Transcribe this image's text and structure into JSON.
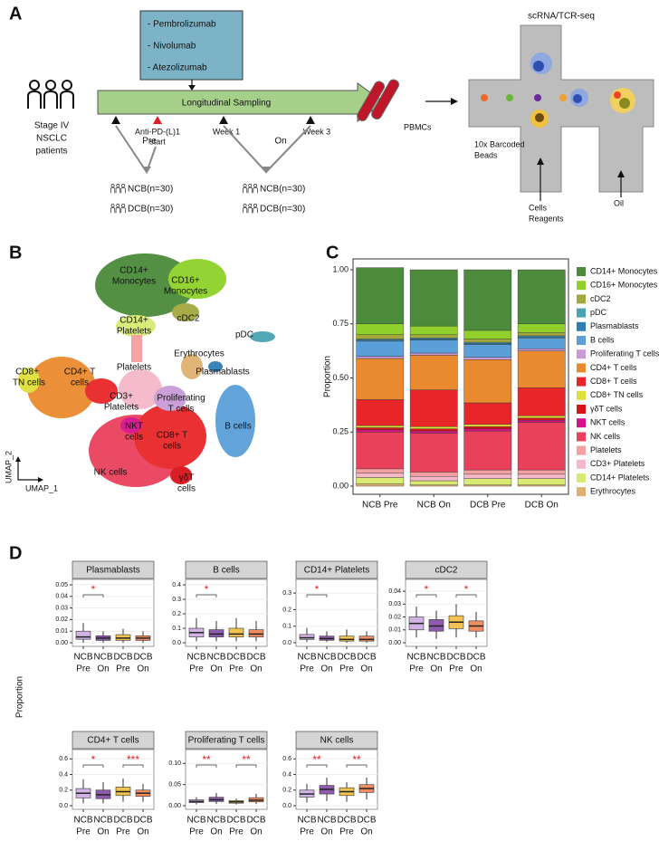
{
  "panel_a": {
    "label": "A",
    "drugs": [
      "- Pembrolizumab",
      "- Nivolumab",
      "- Atezolizumab"
    ],
    "patients": [
      "Stage IV",
      "NSCLC",
      "patients"
    ],
    "sampling": "Longitudinal Sampling",
    "timepoints": [
      [
        "Anti-PD-(L)1",
        "start"
      ],
      [
        "Week 1"
      ],
      [
        "Week 3"
      ]
    ],
    "phases": [
      "Pre",
      "On"
    ],
    "groups": [
      "NCB(n=30)",
      "DCB(n=30)",
      "NCB(n=30)",
      "DCB(n=30)"
    ],
    "pbmcs": "PBMCs",
    "seq_title": "scRNA/TCR-seq",
    "beads": [
      "10x Barcoded",
      "Beads"
    ],
    "cells": [
      "Cells",
      "Reagents"
    ],
    "oil": "Oil"
  },
  "panel_b": {
    "label": "B",
    "clusters": [
      [
        "CD14+",
        "Monocytes"
      ],
      [
        "CD16+",
        "Monocytes"
      ],
      [
        "CD14+",
        "Platelets"
      ],
      [
        "cDC2"
      ],
      [
        "pDC"
      ],
      [
        "Erythrocytes"
      ],
      [
        "Plasmablasts"
      ],
      [
        "CD8+",
        "TN cells"
      ],
      [
        "CD4+ T",
        "cells"
      ],
      [
        "Platelets"
      ],
      [
        "CD3+",
        "Platelets"
      ],
      [
        "Proliferating",
        "T cells"
      ],
      [
        "B cells"
      ],
      [
        "NKT",
        "cells"
      ],
      [
        "CD8+ T",
        "cells"
      ],
      [
        "NK cells"
      ],
      [
        "γδT",
        "cells"
      ]
    ],
    "axes": [
      "UMAP_2",
      "UMAP_1"
    ]
  },
  "panel_c_label": "C",
  "panel_d_label": "D",
  "panel_d_ylabel": "Proportion",
  "chart_data": [
    {
      "type": "stacked_bar",
      "ylabel": "Proportion",
      "categories": [
        "NCB Pre",
        "NCB On",
        "DCB Pre",
        "DCB On"
      ],
      "ylim": [
        0,
        1
      ],
      "yticks": [
        {
          "value": 0,
          "label": "0.00"
        },
        0.25,
        {
          "value": 0.5,
          "label": "0.50"
        },
        0.75,
        {
          "value": 1,
          "label": "1.00"
        }
      ],
      "series": [
        {
          "name": "CD14+ Monocytes",
          "color": "#4b8b3b",
          "values": [
            0.26,
            0.26,
            0.28,
            0.25
          ]
        },
        {
          "name": "CD16+ Monocytes",
          "color": "#8fd12a",
          "values": [
            0.05,
            0.04,
            0.04,
            0.04
          ]
        },
        {
          "name": "cDC2",
          "color": "#a3a83e",
          "values": [
            0.02,
            0.015,
            0.015,
            0.015
          ]
        },
        {
          "name": "pDC",
          "color": "#4aa3b3",
          "values": [
            0.005,
            0.005,
            0.005,
            0.005
          ]
        },
        {
          "name": "Plasmablasts",
          "color": "#2f7fb5",
          "values": [
            0.005,
            0.005,
            0.005,
            0.005
          ]
        },
        {
          "name": "B cells",
          "color": "#5a9fd8",
          "values": [
            0.07,
            0.06,
            0.06,
            0.05
          ]
        },
        {
          "name": "Proliferating T cells",
          "color": "#c99ad6",
          "values": [
            0.01,
            0.01,
            0.01,
            0.01
          ]
        },
        {
          "name": "CD4+ T cells",
          "color": "#ea8a2e",
          "values": [
            0.19,
            0.16,
            0.2,
            0.17
          ]
        },
        {
          "name": "CD8+ T cells",
          "color": "#e8262a",
          "values": [
            0.12,
            0.17,
            0.1,
            0.13
          ]
        },
        {
          "name": "CD8+ TN cells",
          "color": "#e0e03a",
          "values": [
            0.01,
            0.01,
            0.01,
            0.01
          ]
        },
        {
          "name": "γδT cells",
          "color": "#d7141a",
          "values": [
            0.01,
            0.01,
            0.01,
            0.01
          ]
        },
        {
          "name": "NKT cells",
          "color": "#d6128a",
          "values": [
            0.01,
            0.01,
            0.01,
            0.01
          ]
        },
        {
          "name": "NK cells",
          "color": "#e9415c",
          "values": [
            0.17,
            0.18,
            0.18,
            0.22
          ]
        },
        {
          "name": "Platelets",
          "color": "#f2a0a0",
          "values": [
            0.02,
            0.02,
            0.02,
            0.02
          ]
        },
        {
          "name": "CD3+ Platelets",
          "color": "#f5b8c8",
          "values": [
            0.02,
            0.02,
            0.02,
            0.02
          ]
        },
        {
          "name": "CD14+ Platelets",
          "color": "#d8ea72",
          "values": [
            0.03,
            0.02,
            0.03,
            0.03
          ]
        },
        {
          "name": "Erythrocytes",
          "color": "#e0b070",
          "values": [
            0.01,
            0.005,
            0.005,
            0.005
          ]
        }
      ]
    },
    {
      "type": "box",
      "title": "Plasmablasts",
      "x_groups": [
        "NCB",
        "NCB",
        "DCB",
        "DCB"
      ],
      "x_phases": [
        "Pre",
        "On",
        "Pre",
        "On"
      ],
      "colors": [
        "#c9a6e0",
        "#7b3ea0",
        "#f0b830",
        "#ef7a45"
      ],
      "ylim": [
        0,
        0.05
      ],
      "yticks": [
        {
          "value": 0,
          "label": "0.00"
        },
        0.01,
        0.02,
        0.03,
        0.04,
        0.05
      ],
      "boxes": [
        {
          "min": 0,
          "q1": 0.003,
          "median": 0.005,
          "q3": 0.01,
          "max": 0.017
        },
        {
          "min": 0,
          "q1": 0.002,
          "median": 0.004,
          "q3": 0.006,
          "max": 0.01
        },
        {
          "min": 0,
          "q1": 0.002,
          "median": 0.004,
          "q3": 0.007,
          "max": 0.012
        },
        {
          "min": 0,
          "q1": 0.002,
          "median": 0.004,
          "q3": 0.006,
          "max": 0.01
        }
      ],
      "significance": [
        {
          "pair": [
            0,
            1
          ],
          "label": "*"
        }
      ]
    },
    {
      "type": "box",
      "title": "B cells",
      "x_groups": [
        "NCB",
        "NCB",
        "DCB",
        "DCB"
      ],
      "x_phases": [
        "Pre",
        "On",
        "Pre",
        "On"
      ],
      "colors": [
        "#c9a6e0",
        "#7b3ea0",
        "#f0b830",
        "#ef7a45"
      ],
      "ylim": [
        0,
        0.4
      ],
      "yticks": [
        {
          "value": 0,
          "label": "0.0"
        },
        0.1,
        0.2,
        0.3,
        0.4
      ],
      "boxes": [
        {
          "min": 0.01,
          "q1": 0.04,
          "median": 0.07,
          "q3": 0.1,
          "max": 0.17
        },
        {
          "min": 0.01,
          "q1": 0.04,
          "median": 0.06,
          "q3": 0.09,
          "max": 0.15
        },
        {
          "min": 0.01,
          "q1": 0.04,
          "median": 0.06,
          "q3": 0.1,
          "max": 0.17
        },
        {
          "min": 0.01,
          "q1": 0.04,
          "median": 0.06,
          "q3": 0.09,
          "max": 0.15
        }
      ],
      "significance": [
        {
          "pair": [
            0,
            1
          ],
          "label": "*"
        }
      ]
    },
    {
      "type": "box",
      "title": "CD14+ Platelets",
      "x_groups": [
        "NCB",
        "NCB",
        "DCB",
        "DCB"
      ],
      "x_phases": [
        "Pre",
        "On",
        "Pre",
        "On"
      ],
      "colors": [
        "#c9a6e0",
        "#7b3ea0",
        "#f0b830",
        "#ef7a45"
      ],
      "ylim": [
        0,
        0.35
      ],
      "yticks": [
        {
          "value": 0,
          "label": "0.0"
        },
        0.1,
        0.2,
        0.3
      ],
      "boxes": [
        {
          "min": 0.005,
          "q1": 0.02,
          "median": 0.03,
          "q3": 0.05,
          "max": 0.09
        },
        {
          "min": 0.005,
          "q1": 0.015,
          "median": 0.025,
          "q3": 0.04,
          "max": 0.07
        },
        {
          "min": 0,
          "q1": 0.01,
          "median": 0.02,
          "q3": 0.04,
          "max": 0.08
        },
        {
          "min": 0,
          "q1": 0.01,
          "median": 0.02,
          "q3": 0.04,
          "max": 0.07
        }
      ],
      "significance": [
        {
          "pair": [
            0,
            1
          ],
          "label": "*"
        }
      ]
    },
    {
      "type": "box",
      "title": "cDC2",
      "x_groups": [
        "NCB",
        "NCB",
        "DCB",
        "DCB"
      ],
      "x_phases": [
        "Pre",
        "On",
        "Pre",
        "On"
      ],
      "colors": [
        "#c9a6e0",
        "#7b3ea0",
        "#f0b830",
        "#ef7a45"
      ],
      "ylim": [
        0,
        0.045
      ],
      "yticks": [
        {
          "value": 0,
          "label": "0.00"
        },
        0.01,
        0.02,
        0.03,
        0.04
      ],
      "boxes": [
        {
          "min": 0.004,
          "q1": 0.01,
          "median": 0.015,
          "q3": 0.02,
          "max": 0.028
        },
        {
          "min": 0.003,
          "q1": 0.009,
          "median": 0.013,
          "q3": 0.018,
          "max": 0.025
        },
        {
          "min": 0.004,
          "q1": 0.011,
          "median": 0.016,
          "q3": 0.021,
          "max": 0.03
        },
        {
          "min": 0.004,
          "q1": 0.009,
          "median": 0.013,
          "q3": 0.017,
          "max": 0.024
        }
      ],
      "significance": [
        {
          "pair": [
            0,
            1
          ],
          "label": "*"
        },
        {
          "pair": [
            2,
            3
          ],
          "label": "*"
        }
      ]
    },
    {
      "type": "box",
      "title": "CD4+ T cells",
      "x_groups": [
        "NCB",
        "NCB",
        "DCB",
        "DCB"
      ],
      "x_phases": [
        "Pre",
        "On",
        "Pre",
        "On"
      ],
      "colors": [
        "#c9a6e0",
        "#7b3ea0",
        "#f0b830",
        "#ef7a45"
      ],
      "ylim": [
        0,
        0.65
      ],
      "yticks": [
        {
          "value": 0,
          "label": "0.0"
        },
        0.2,
        0.4,
        0.6
      ],
      "boxes": [
        {
          "min": 0.03,
          "q1": 0.1,
          "median": 0.16,
          "q3": 0.22,
          "max": 0.34
        },
        {
          "min": 0.03,
          "q1": 0.09,
          "median": 0.14,
          "q3": 0.2,
          "max": 0.3
        },
        {
          "min": 0.05,
          "q1": 0.13,
          "median": 0.18,
          "q3": 0.24,
          "max": 0.35
        },
        {
          "min": 0.05,
          "q1": 0.12,
          "median": 0.16,
          "q3": 0.2,
          "max": 0.28
        }
      ],
      "significance": [
        {
          "pair": [
            0,
            1
          ],
          "label": "*"
        },
        {
          "pair": [
            2,
            3
          ],
          "label": "***"
        }
      ]
    },
    {
      "type": "box",
      "title": "Proliferating T cells",
      "x_groups": [
        "NCB",
        "NCB",
        "DCB",
        "DCB"
      ],
      "x_phases": [
        "Pre",
        "On",
        "Pre",
        "On"
      ],
      "colors": [
        "#c9a6e0",
        "#7b3ea0",
        "#f0b830",
        "#ef7a45"
      ],
      "ylim": [
        0,
        0.12
      ],
      "yticks": [
        {
          "value": 0,
          "label": "0.00"
        },
        0.05,
        {
          "value": 0.1,
          "label": "0.10"
        }
      ],
      "boxes": [
        {
          "min": 0.003,
          "q1": 0.007,
          "median": 0.01,
          "q3": 0.014,
          "max": 0.02
        },
        {
          "min": 0.004,
          "q1": 0.01,
          "median": 0.014,
          "q3": 0.02,
          "max": 0.03
        },
        {
          "min": 0.003,
          "q1": 0.006,
          "median": 0.009,
          "q3": 0.012,
          "max": 0.017
        },
        {
          "min": 0.004,
          "q1": 0.009,
          "median": 0.013,
          "q3": 0.019,
          "max": 0.028
        }
      ],
      "significance": [
        {
          "pair": [
            0,
            1
          ],
          "label": "**"
        },
        {
          "pair": [
            2,
            3
          ],
          "label": "**"
        }
      ]
    },
    {
      "type": "box",
      "title": "NK cells",
      "x_groups": [
        "NCB",
        "NCB",
        "DCB",
        "DCB"
      ],
      "x_phases": [
        "Pre",
        "On",
        "Pre",
        "On"
      ],
      "colors": [
        "#c9a6e0",
        "#7b3ea0",
        "#f0b830",
        "#ef7a45"
      ],
      "ylim": [
        0,
        0.65
      ],
      "yticks": [
        {
          "value": 0,
          "label": "0.0"
        },
        0.2,
        0.4,
        0.6
      ],
      "boxes": [
        {
          "min": 0.04,
          "q1": 0.11,
          "median": 0.15,
          "q3": 0.2,
          "max": 0.28
        },
        {
          "min": 0.06,
          "q1": 0.15,
          "median": 0.21,
          "q3": 0.26,
          "max": 0.36
        },
        {
          "min": 0.05,
          "q1": 0.13,
          "median": 0.18,
          "q3": 0.23,
          "max": 0.3
        },
        {
          "min": 0.08,
          "q1": 0.17,
          "median": 0.22,
          "q3": 0.27,
          "max": 0.36
        }
      ],
      "significance": [
        {
          "pair": [
            0,
            1
          ],
          "label": "**"
        },
        {
          "pair": [
            2,
            3
          ],
          "label": "**"
        }
      ]
    }
  ]
}
